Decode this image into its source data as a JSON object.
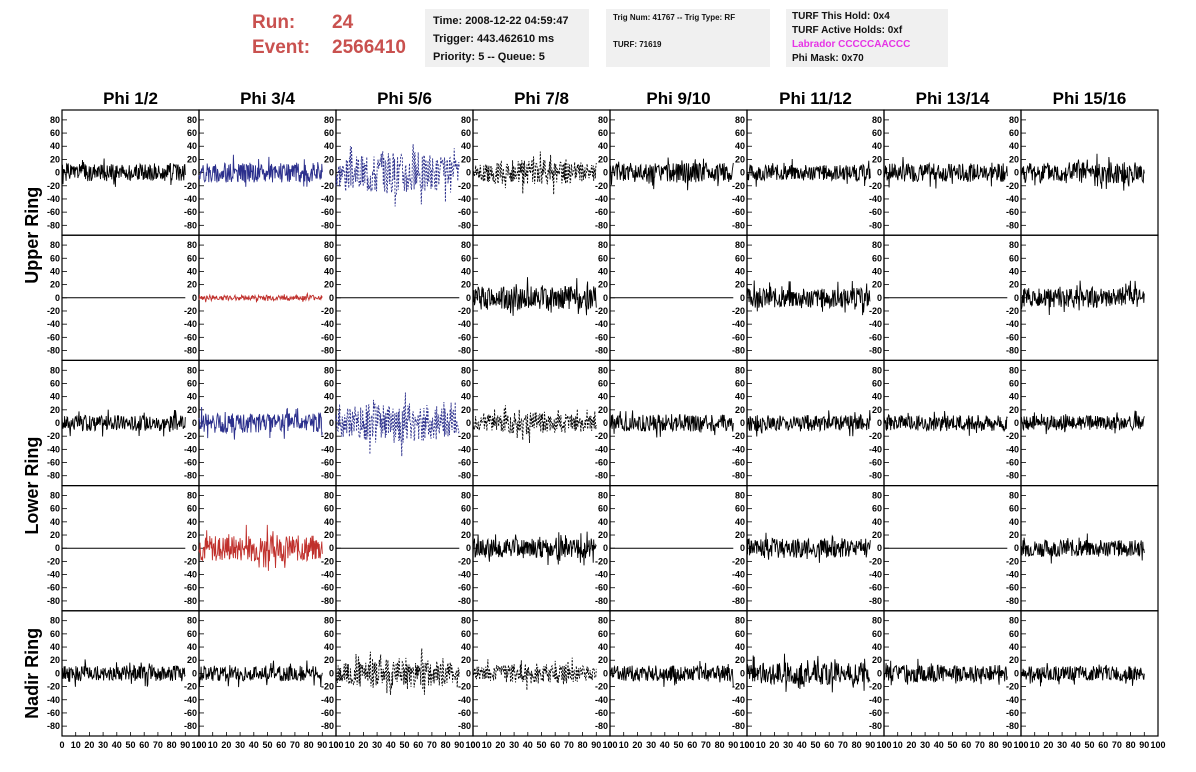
{
  "header": {
    "run_label": "Run:",
    "run_value": "24",
    "event_label": "Event:",
    "event_value": "2566410"
  },
  "info_time": {
    "time": "Time: 2008-12-22 04:59:47",
    "trigger": "Trigger: 443.462610 ms",
    "priority": "Priority: 5 -- Queue: 5"
  },
  "info_trig": {
    "trig": "Trig Num: 41767 -- Trig Type: RF",
    "turf": "TURF: 71619"
  },
  "info_turf": {
    "this_hold": "TURF This Hold: 0x4",
    "active_holds": "TURF Active Holds: 0xf",
    "labrador": "Labrador CCCCCAACCC",
    "phi_mask": "Phi Mask: 0x70"
  },
  "chart_data": {
    "type": "line",
    "columns": [
      "Phi 1/2",
      "Phi 3/4",
      "Phi 5/6",
      "Phi 7/8",
      "Phi 9/10",
      "Phi 11/12",
      "Phi 13/14",
      "Phi 15/16"
    ],
    "row_groups": [
      "Upper Ring",
      "Lower Ring",
      "Nadir Ring"
    ],
    "xlim": [
      0,
      100
    ],
    "ylim": [
      -95,
      95
    ],
    "x_ticks": [
      "0",
      "10",
      "20",
      "30",
      "40",
      "50",
      "60",
      "70",
      "80",
      "90",
      "100"
    ],
    "y_ticks": [
      "80",
      "60",
      "40",
      "20",
      "0",
      "-20",
      "-40",
      "-60",
      "-80"
    ],
    "y_tick_values": [
      80,
      60,
      40,
      20,
      0,
      -20,
      -40,
      -60,
      -80
    ],
    "x_range_waveform": [
      0,
      90
    ],
    "colors": {
      "black": "#000000",
      "blue": "#2b2f8c",
      "red": "#c0302c"
    },
    "panels": [
      [
        {
          "color": "black",
          "dash": false,
          "amp": 13,
          "seed": 1
        },
        {
          "color": "blue",
          "dash": false,
          "amp": 15,
          "seed": 2
        },
        {
          "color": "blue",
          "dash": true,
          "amp": 34,
          "seed": 3
        },
        {
          "color": "black",
          "dash": true,
          "amp": 20,
          "seed": 4
        },
        {
          "color": "black",
          "dash": false,
          "amp": 15,
          "seed": 5
        },
        {
          "color": "black",
          "dash": false,
          "amp": 12,
          "seed": 6
        },
        {
          "color": "black",
          "dash": false,
          "amp": 14,
          "seed": 7
        },
        {
          "color": "black",
          "dash": false,
          "amp": 16,
          "seed": 8
        }
      ],
      [
        {
          "color": "black",
          "dash": false,
          "amp": 0,
          "seed": 9
        },
        {
          "color": "red",
          "dash": false,
          "amp": 4,
          "seed": 10
        },
        {
          "color": "black",
          "dash": false,
          "amp": 0,
          "seed": 11
        },
        {
          "color": "black",
          "dash": false,
          "amp": 18,
          "seed": 12
        },
        {
          "color": "black",
          "dash": false,
          "amp": 0,
          "seed": 13
        },
        {
          "color": "black",
          "dash": false,
          "amp": 15,
          "seed": 14
        },
        {
          "color": "black",
          "dash": false,
          "amp": 0,
          "seed": 15
        },
        {
          "color": "black",
          "dash": false,
          "amp": 15,
          "seed": 16
        }
      ],
      [
        {
          "color": "black",
          "dash": false,
          "amp": 12,
          "seed": 17
        },
        {
          "color": "blue",
          "dash": false,
          "amp": 15,
          "seed": 18
        },
        {
          "color": "blue",
          "dash": true,
          "amp": 32,
          "seed": 19
        },
        {
          "color": "black",
          "dash": true,
          "amp": 17,
          "seed": 20
        },
        {
          "color": "black",
          "dash": false,
          "amp": 13,
          "seed": 21
        },
        {
          "color": "black",
          "dash": false,
          "amp": 12,
          "seed": 22
        },
        {
          "color": "black",
          "dash": false,
          "amp": 12,
          "seed": 23
        },
        {
          "color": "black",
          "dash": false,
          "amp": 11,
          "seed": 24
        }
      ],
      [
        {
          "color": "black",
          "dash": false,
          "amp": 0,
          "seed": 25
        },
        {
          "color": "red",
          "dash": false,
          "amp": 20,
          "seed": 26
        },
        {
          "color": "black",
          "dash": false,
          "amp": 0,
          "seed": 27
        },
        {
          "color": "black",
          "dash": false,
          "amp": 15,
          "seed": 28
        },
        {
          "color": "black",
          "dash": false,
          "amp": 0,
          "seed": 29
        },
        {
          "color": "black",
          "dash": false,
          "amp": 15,
          "seed": 30
        },
        {
          "color": "black",
          "dash": false,
          "amp": 0,
          "seed": 31
        },
        {
          "color": "black",
          "dash": false,
          "amp": 13,
          "seed": 32
        }
      ],
      [
        {
          "color": "black",
          "dash": false,
          "amp": 12,
          "seed": 33
        },
        {
          "color": "black",
          "dash": false,
          "amp": 12,
          "seed": 34
        },
        {
          "color": "black",
          "dash": true,
          "amp": 24,
          "seed": 35
        },
        {
          "color": "black",
          "dash": true,
          "amp": 16,
          "seed": 36
        },
        {
          "color": "black",
          "dash": false,
          "amp": 12,
          "seed": 37
        },
        {
          "color": "black",
          "dash": false,
          "amp": 17,
          "seed": 38
        },
        {
          "color": "black",
          "dash": false,
          "amp": 13,
          "seed": 39
        },
        {
          "color": "black",
          "dash": false,
          "amp": 11,
          "seed": 40
        }
      ]
    ]
  }
}
